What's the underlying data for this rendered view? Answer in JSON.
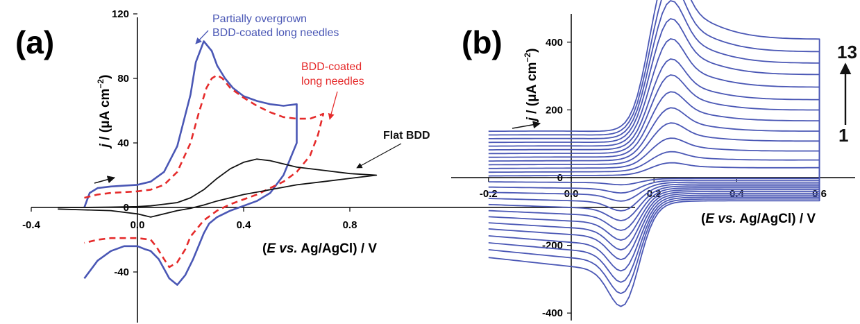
{
  "chart_data": [
    {
      "panel": "(a)",
      "type": "line",
      "xlabel": "(E vs. Ag/AgCl) / V",
      "ylabel": "j / (μA cm⁻²)",
      "xlim": [
        -0.4,
        0.92
      ],
      "ylim": [
        -65,
        120
      ],
      "xticks": [
        -0.4,
        0.0,
        0.4,
        0.8
      ],
      "xtick_labels": [
        "-0.4",
        "0.0",
        "0.4",
        "0.8"
      ],
      "yticks": [
        -40,
        0,
        40,
        80,
        120
      ],
      "ytick_labels": [
        "-40",
        "0",
        "40",
        "80",
        "120"
      ],
      "grid": false,
      "series": [
        {
          "name": "Partially overgrown BDD-coated long needles",
          "color": "#4a57b5",
          "style": "solid",
          "x": [
            -0.2,
            -0.18,
            -0.15,
            -0.1,
            -0.05,
            0.0,
            0.05,
            0.1,
            0.15,
            0.2,
            0.22,
            0.25,
            0.28,
            0.3,
            0.33,
            0.36,
            0.4,
            0.45,
            0.5,
            0.55,
            0.6,
            0.6,
            0.6,
            0.55,
            0.5,
            0.45,
            0.4,
            0.35,
            0.3,
            0.27,
            0.25,
            0.23,
            0.21,
            0.18,
            0.15,
            0.12,
            0.1,
            0.08,
            0.05,
            0.03,
            0.0,
            -0.05,
            -0.1,
            -0.15,
            -0.2
          ],
          "y": [
            0,
            9,
            12,
            13,
            13.5,
            14,
            16,
            22,
            38,
            70,
            90,
            103,
            97,
            88,
            80,
            74,
            69,
            66,
            64,
            63,
            64,
            62,
            40,
            20,
            9,
            4,
            1,
            -2,
            -6,
            -10,
            -16,
            -24,
            -32,
            -42,
            -48,
            -44,
            -38,
            -32,
            -27,
            -26,
            -24,
            -24,
            -27,
            -33,
            -44
          ]
        },
        {
          "name": "BDD-coated long needles",
          "color": "#e52b2b",
          "style": "dashed",
          "x": [
            -0.2,
            -0.15,
            -0.1,
            -0.05,
            0.0,
            0.05,
            0.1,
            0.15,
            0.2,
            0.23,
            0.26,
            0.28,
            0.3,
            0.32,
            0.35,
            0.4,
            0.45,
            0.5,
            0.55,
            0.6,
            0.65,
            0.7,
            0.7,
            0.68,
            0.65,
            0.6,
            0.55,
            0.5,
            0.45,
            0.4,
            0.35,
            0.3,
            0.25,
            0.2,
            0.18,
            0.15,
            0.12,
            0.1,
            0.07,
            0.05,
            0.0,
            -0.05,
            -0.1,
            -0.15,
            -0.2
          ],
          "y": [
            6,
            8,
            9,
            9.5,
            10,
            11,
            14,
            22,
            40,
            58,
            74,
            80,
            82,
            80,
            74,
            68,
            63,
            59,
            56,
            55,
            55,
            58,
            58,
            45,
            32,
            22,
            16,
            12,
            8,
            5,
            2,
            -2,
            -8,
            -18,
            -26,
            -34,
            -37,
            -32,
            -24,
            -20,
            -19,
            -19,
            -19,
            -20,
            -22
          ]
        },
        {
          "name": "Flat BDD",
          "color": "#111111",
          "style": "solid",
          "x": [
            -0.3,
            -0.2,
            -0.1,
            0.0,
            0.05,
            0.1,
            0.15,
            0.2,
            0.25,
            0.3,
            0.35,
            0.4,
            0.45,
            0.5,
            0.55,
            0.6,
            0.7,
            0.8,
            0.9,
            0.9,
            0.8,
            0.7,
            0.6,
            0.5,
            0.4,
            0.3,
            0.25,
            0.2,
            0.15,
            0.1,
            0.05,
            0.0,
            -0.1,
            -0.2,
            -0.3
          ],
          "y": [
            0,
            0,
            0.2,
            0.5,
            1,
            2,
            3,
            6,
            11,
            18,
            24,
            28,
            30,
            29,
            27,
            25,
            23,
            21,
            20,
            20,
            18,
            16,
            14,
            11,
            8,
            4,
            1.5,
            -0.5,
            -2,
            -4,
            -6,
            -4,
            -2,
            -1.5,
            -1
          ]
        }
      ],
      "annotations": [
        {
          "text": "Partially overgrown",
          "color": "#4a57b5"
        },
        {
          "text": "BDD-coated long needles",
          "color": "#4a57b5"
        },
        {
          "text": "BDD-coated",
          "color": "#e52b2b"
        },
        {
          "text": "long needles",
          "color": "#e52b2b"
        },
        {
          "text": "Flat BDD",
          "color": "#111111"
        }
      ]
    },
    {
      "panel": "(b)",
      "type": "line",
      "xlabel": "(E vs. Ag/AgCl) / V",
      "ylabel": "j / (μA cm⁻²)",
      "xlim": [
        -0.22,
        0.72
      ],
      "ylim": [
        -420,
        480
      ],
      "xticks": [
        -0.2,
        0.0,
        0.2,
        0.4,
        0.6
      ],
      "xtick_labels": [
        "-0.2",
        "0.0",
        "0.2",
        "0.4",
        "0.6"
      ],
      "yticks": [
        -400,
        -200,
        0,
        200,
        400
      ],
      "ytick_labels": [
        "-400",
        "-200",
        "0",
        "200",
        "400"
      ],
      "grid": false,
      "color": "#4a57b5",
      "cycle_count": 13,
      "cycle_start_label": "1",
      "cycle_end_label": "13",
      "anodic_peak_current": [
        30,
        48,
        72,
        100,
        128,
        158,
        190,
        220,
        260,
        300,
        335,
        370,
        410
      ],
      "cathodic_peak_current": [
        -20,
        -40,
        -60,
        -85,
        -110,
        -135,
        -160,
        -185,
        -210,
        -240,
        -270,
        -300,
        -335
      ]
    }
  ]
}
